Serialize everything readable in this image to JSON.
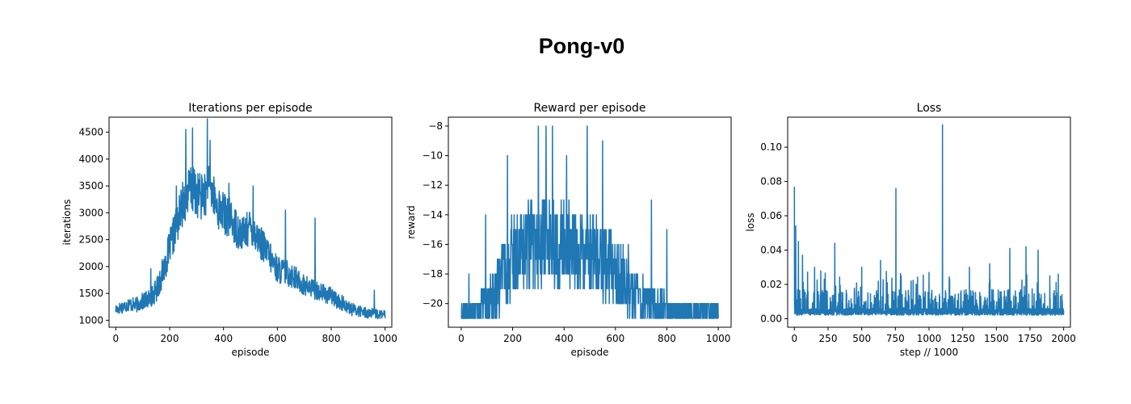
{
  "suptitle": "Pong-v0",
  "line_color": "#1f77b4",
  "chart_data": [
    {
      "type": "line",
      "title": "Iterations per episode",
      "xlabel": "episode",
      "ylabel": "iterations",
      "xlim": [
        -25,
        1025
      ],
      "ylim": [
        870,
        4780
      ],
      "xticks": [
        0,
        200,
        400,
        600,
        800,
        1000
      ],
      "yticks": [
        1000,
        1500,
        2000,
        2500,
        3000,
        3500,
        4000,
        4500
      ],
      "series": [
        {
          "x": [
            0,
            25,
            50,
            75,
            100,
            125,
            150,
            175,
            200,
            225,
            250,
            275,
            300,
            325,
            350,
            375,
            400,
            425,
            450,
            475,
            500,
            525,
            550,
            575,
            600,
            625,
            650,
            675,
            700,
            725,
            750,
            775,
            800,
            825,
            850,
            875,
            900,
            925,
            950,
            975,
            1000
          ],
          "y": [
            1200,
            1250,
            1300,
            1280,
            1350,
            1400,
            1550,
            1900,
            2350,
            2750,
            3200,
            3450,
            3350,
            3300,
            3500,
            3100,
            3000,
            2900,
            2700,
            2600,
            2750,
            2550,
            2350,
            2150,
            1950,
            1900,
            1850,
            1750,
            1650,
            1600,
            1550,
            1500,
            1450,
            1350,
            1300,
            1200,
            1180,
            1150,
            1120,
            1110,
            1100
          ],
          "spread": [
            100,
            120,
            130,
            140,
            160,
            180,
            220,
            280,
            320,
            380,
            420,
            450,
            450,
            430,
            420,
            400,
            400,
            380,
            360,
            340,
            330,
            320,
            300,
            280,
            260,
            250,
            240,
            220,
            200,
            190,
            180,
            170,
            160,
            150,
            140,
            120,
            110,
            100,
            100,
            90,
            80
          ],
          "min": 1000,
          "max": 4750,
          "peaks": [
            [
              130,
              1960
            ],
            [
              225,
              3500
            ],
            [
              260,
              4550
            ],
            [
              285,
              4580
            ],
            [
              340,
              4750
            ],
            [
              350,
              4350
            ],
            [
              420,
              3550
            ],
            [
              510,
              3500
            ],
            [
              630,
              3050
            ],
            [
              740,
              2900
            ],
            [
              960,
              1560
            ]
          ]
        }
      ]
    },
    {
      "type": "line",
      "title": "Reward per episode",
      "xlabel": "episode",
      "ylabel": "reward",
      "xlim": [
        -50,
        1050
      ],
      "ylim": [
        -21.6,
        -7.4
      ],
      "xticks": [
        0,
        200,
        400,
        600,
        800,
        1000
      ],
      "yticks": [
        -20,
        -18,
        -16,
        -14,
        -12,
        -10,
        -8
      ],
      "ytick_labels": [
        "−20",
        "−18",
        "−16",
        "−14",
        "−12",
        "−10",
        "−8"
      ],
      "series": [
        {
          "x": [
            0,
            25,
            50,
            75,
            100,
            125,
            150,
            175,
            200,
            225,
            250,
            275,
            300,
            325,
            350,
            375,
            400,
            425,
            450,
            475,
            500,
            525,
            550,
            575,
            600,
            625,
            650,
            675,
            700,
            725,
            750,
            775,
            800,
            825,
            850,
            875,
            900,
            925,
            950,
            975,
            1000
          ],
          "y": [
            -20.5,
            -20.5,
            -20.4,
            -20.2,
            -20,
            -19.5,
            -18.5,
            -17.5,
            -16.8,
            -16.5,
            -16.2,
            -16,
            -15.8,
            -15.8,
            -15.9,
            -16,
            -16,
            -16.2,
            -16.4,
            -16.6,
            -16.5,
            -16.8,
            -17.2,
            -17.6,
            -18,
            -18.4,
            -18.8,
            -19.2,
            -19.5,
            -19.8,
            -20,
            -20.2,
            -20.3,
            -20.4,
            -20.5,
            -20.5,
            -20.5,
            -20.5,
            -20.5,
            -20.5,
            -20.5
          ],
          "spread": [
            0.6,
            0.7,
            0.8,
            1.0,
            1.2,
            1.6,
            2.0,
            2.4,
            2.6,
            2.8,
            3.0,
            3.0,
            3.0,
            3.0,
            3.0,
            3.0,
            3.0,
            2.9,
            2.8,
            2.8,
            2.8,
            2.7,
            2.6,
            2.5,
            2.4,
            2.2,
            2.0,
            1.8,
            1.6,
            1.4,
            1.2,
            1.0,
            0.9,
            0.8,
            0.7,
            0.6,
            0.6,
            0.6,
            0.6,
            0.6,
            0.6
          ],
          "min": -21,
          "max": -8,
          "step": 1,
          "peaks": [
            [
              30,
              -18
            ],
            [
              95,
              -14
            ],
            [
              180,
              -10
            ],
            [
              300,
              -8
            ],
            [
              330,
              -8
            ],
            [
              355,
              -8
            ],
            [
              410,
              -10
            ],
            [
              490,
              -8
            ],
            [
              550,
              -9
            ],
            [
              650,
              -16
            ],
            [
              740,
              -13
            ],
            [
              800,
              -15
            ],
            [
              960,
              -20
            ]
          ]
        }
      ]
    },
    {
      "type": "line",
      "title": "Loss",
      "xlabel": "step // 1000",
      "ylabel": "loss",
      "xlim": [
        -50,
        2050
      ],
      "ylim": [
        -0.005,
        0.1175
      ],
      "xticks": [
        0,
        250,
        500,
        750,
        1000,
        1250,
        1500,
        1750,
        2000
      ],
      "yticks": [
        0.0,
        0.02,
        0.04,
        0.06,
        0.08,
        0.1
      ],
      "ytick_labels": [
        "0.00",
        "0.02",
        "0.04",
        "0.06",
        "0.08",
        "0.10"
      ],
      "series": [
        {
          "x": [
            0,
            2000
          ],
          "y": [
            0.003,
            0.003
          ],
          "base": 0.002,
          "min": 0.0,
          "max": 0.113,
          "peaks": [
            [
              0,
              0.077
            ],
            [
              10,
              0.054
            ],
            [
              30,
              0.045
            ],
            [
              60,
              0.037
            ],
            [
              150,
              0.03
            ],
            [
              300,
              0.044
            ],
            [
              500,
              0.03
            ],
            [
              640,
              0.034
            ],
            [
              754,
              0.076
            ],
            [
              1000,
              0.027
            ],
            [
              1100,
              0.113
            ],
            [
              1300,
              0.03
            ],
            [
              1450,
              0.032
            ],
            [
              1600,
              0.041
            ],
            [
              1720,
              0.042
            ],
            [
              1810,
              0.04
            ],
            [
              1960,
              0.026
            ]
          ]
        }
      ]
    }
  ]
}
